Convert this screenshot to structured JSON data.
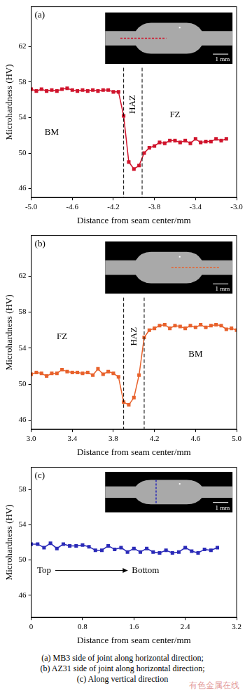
{
  "chart_data": [
    {
      "type": "line",
      "panel_label": "(a)",
      "xlabel": "Distance from seam center/mm",
      "ylabel": "Microhardness (HV)",
      "color": "#d0142c",
      "marker": "square",
      "line_style": "solid",
      "grid": false,
      "inset_scale_label": "1 mm",
      "x": [
        -5.0,
        -4.95,
        -4.9,
        -4.85,
        -4.8,
        -4.75,
        -4.7,
        -4.65,
        -4.6,
        -4.55,
        -4.5,
        -4.45,
        -4.4,
        -4.35,
        -4.3,
        -4.25,
        -4.2,
        -4.15,
        -4.1,
        -4.05,
        -4.0,
        -3.95,
        -3.9,
        -3.85,
        -3.8,
        -3.75,
        -3.7,
        -3.65,
        -3.6,
        -3.55,
        -3.5,
        -3.45,
        -3.4,
        -3.35,
        -3.3,
        -3.25,
        -3.2,
        -3.15,
        -3.1
      ],
      "values": [
        57.2,
        57.0,
        57.2,
        57.0,
        57.1,
        57.0,
        57.2,
        57.3,
        57.1,
        57.0,
        57.1,
        57.0,
        57.1,
        57.0,
        57.1,
        57.1,
        56.9,
        56.9,
        54.2,
        49.0,
        48.2,
        48.6,
        50.0,
        50.6,
        50.8,
        51.2,
        51.1,
        51.4,
        51.4,
        51.2,
        51.4,
        51.1,
        51.6,
        51.2,
        51.3,
        51.3,
        51.6,
        51.4,
        51.6
      ],
      "boundaries": [
        -4.1,
        -3.92
      ],
      "annotations": [
        {
          "text": "BM",
          "x": -4.8,
          "y": 52.3
        },
        {
          "text": "HAZ",
          "x": -4.01,
          "y": 55.5
        },
        {
          "text": "FZ",
          "x": -3.6,
          "y": 54.3
        }
      ],
      "xlim": [
        -5.0,
        -3.0
      ],
      "ylim": [
        45,
        66.5
      ],
      "xticks": [
        {
          "value": -5.0,
          "label": "-5.0"
        },
        -4.6,
        -4.2,
        -3.8,
        -3.4,
        {
          "value": -3.0,
          "label": "-3.0"
        }
      ],
      "yticks": [
        46,
        50,
        54,
        58,
        62
      ]
    },
    {
      "type": "line",
      "panel_label": "(b)",
      "xlabel": "Distance from seam center/mm",
      "ylabel": "Microhardness (HV)",
      "color": "#e8622c",
      "marker": "square",
      "line_style": "solid",
      "grid": false,
      "inset_scale_label": "1 mm",
      "x": [
        3.0,
        3.05,
        3.1,
        3.15,
        3.2,
        3.25,
        3.3,
        3.35,
        3.4,
        3.45,
        3.5,
        3.55,
        3.6,
        3.65,
        3.7,
        3.75,
        3.8,
        3.85,
        3.9,
        3.95,
        4.0,
        4.05,
        4.1,
        4.15,
        4.2,
        4.25,
        4.3,
        4.35,
        4.4,
        4.45,
        4.5,
        4.55,
        4.6,
        4.65,
        4.7,
        4.75,
        4.8,
        4.85,
        4.9,
        4.95,
        5.0
      ],
      "values": [
        51.1,
        51.3,
        51.2,
        50.9,
        51.2,
        51.2,
        51.6,
        51.4,
        51.3,
        51.3,
        51.2,
        51.3,
        51.0,
        51.7,
        51.1,
        51.4,
        51.2,
        50.8,
        48.0,
        47.7,
        48.5,
        51.0,
        55.2,
        56.0,
        56.2,
        56.5,
        56.6,
        56.2,
        56.5,
        56.4,
        56.2,
        56.5,
        56.3,
        56.6,
        56.3,
        56.5,
        56.6,
        56.5,
        56.1,
        56.2,
        56.0
      ],
      "boundaries": [
        3.9,
        4.1
      ],
      "annotations": [
        {
          "text": "FZ",
          "x": 3.3,
          "y": 55.3
        },
        {
          "text": "HAZ",
          "x": 4.0,
          "y": 55.3
        },
        {
          "text": "BM",
          "x": 4.6,
          "y": 53.3
        }
      ],
      "xlim": [
        3.0,
        5.0
      ],
      "ylim": [
        45,
        66.5
      ],
      "xticks": [
        {
          "value": 3.0,
          "label": "3.0"
        },
        3.4,
        3.8,
        4.2,
        4.6,
        {
          "value": 5.0,
          "label": "5.0"
        }
      ],
      "yticks": [
        46,
        50,
        54,
        58,
        62
      ]
    },
    {
      "type": "line",
      "panel_label": "(c)",
      "xlabel": "Distance from seam center/mm",
      "ylabel": "Microhardness (HV)",
      "color": "#2a2ab8",
      "marker": "square",
      "line_style": "solid",
      "grid": false,
      "inset_scale_label": "1 mm",
      "x": [
        0,
        0.1,
        0.2,
        0.3,
        0.4,
        0.5,
        0.6,
        0.7,
        0.8,
        0.9,
        1.0,
        1.1,
        1.2,
        1.3,
        1.4,
        1.5,
        1.6,
        1.7,
        1.8,
        1.9,
        2.0,
        2.1,
        2.2,
        2.3,
        2.4,
        2.5,
        2.6,
        2.7,
        2.8,
        2.9
      ],
      "values": [
        51.8,
        51.8,
        51.4,
        51.9,
        51.3,
        51.8,
        51.6,
        51.6,
        51.7,
        51.5,
        51.1,
        51.1,
        51.6,
        51.2,
        51.4,
        50.9,
        51.3,
        50.9,
        51.3,
        50.9,
        50.8,
        51.1,
        50.8,
        50.9,
        51.4,
        51.0,
        50.8,
        51.2,
        51.1,
        51.4
      ],
      "boundaries": [],
      "annotations": [
        {
          "text": "Top",
          "x": 0.2,
          "y": 48.8
        },
        {
          "text": "Bottom",
          "x": 1.78,
          "y": 48.8
        }
      ],
      "xlim": [
        0,
        3.2
      ],
      "ylim": [
        43.5,
        60.5
      ],
      "xticks": [
        0,
        0.8,
        1.6,
        2.4,
        3.2
      ],
      "yticks": [
        46,
        50,
        54,
        58
      ]
    }
  ],
  "caption": [
    "(a) MB3 side of joint along horizontal direction;",
    "(b) AZ31 side of joint along horizontal direction;",
    "(c) Along vertical direction"
  ],
  "watermark": "有色金属在线"
}
